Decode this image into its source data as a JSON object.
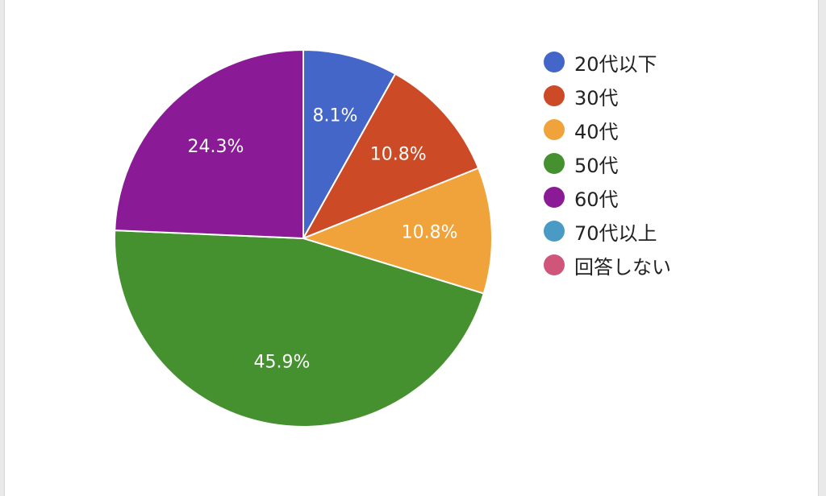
{
  "chart_data": {
    "type": "pie",
    "title": "",
    "categories": [
      "20代以下",
      "30代",
      "40代",
      "50代",
      "60代",
      "70代以上",
      "回答しない"
    ],
    "values": [
      8.1,
      10.8,
      10.8,
      45.9,
      24.3,
      0,
      0
    ],
    "data_labels": [
      "8.1%",
      "10.8%",
      "10.8%",
      "45.9%",
      "24.3%",
      "",
      ""
    ],
    "colors": [
      "#4366c8",
      "#cc4a25",
      "#f0a33a",
      "#45912f",
      "#8a1a95",
      "#4a9ac6",
      "#d0557a"
    ],
    "start_angle_deg": 90,
    "direction": "clockwise",
    "legend_position": "right"
  },
  "legend": {
    "items": [
      {
        "label": "20代以下",
        "color": "#4366c8"
      },
      {
        "label": "30代",
        "color": "#cc4a25"
      },
      {
        "label": "40代",
        "color": "#f0a33a"
      },
      {
        "label": "50代",
        "color": "#45912f"
      },
      {
        "label": "60代",
        "color": "#8a1a95"
      },
      {
        "label": "70代以上",
        "color": "#4a9ac6"
      },
      {
        "label": "回答しない",
        "color": "#d0557a"
      }
    ]
  }
}
